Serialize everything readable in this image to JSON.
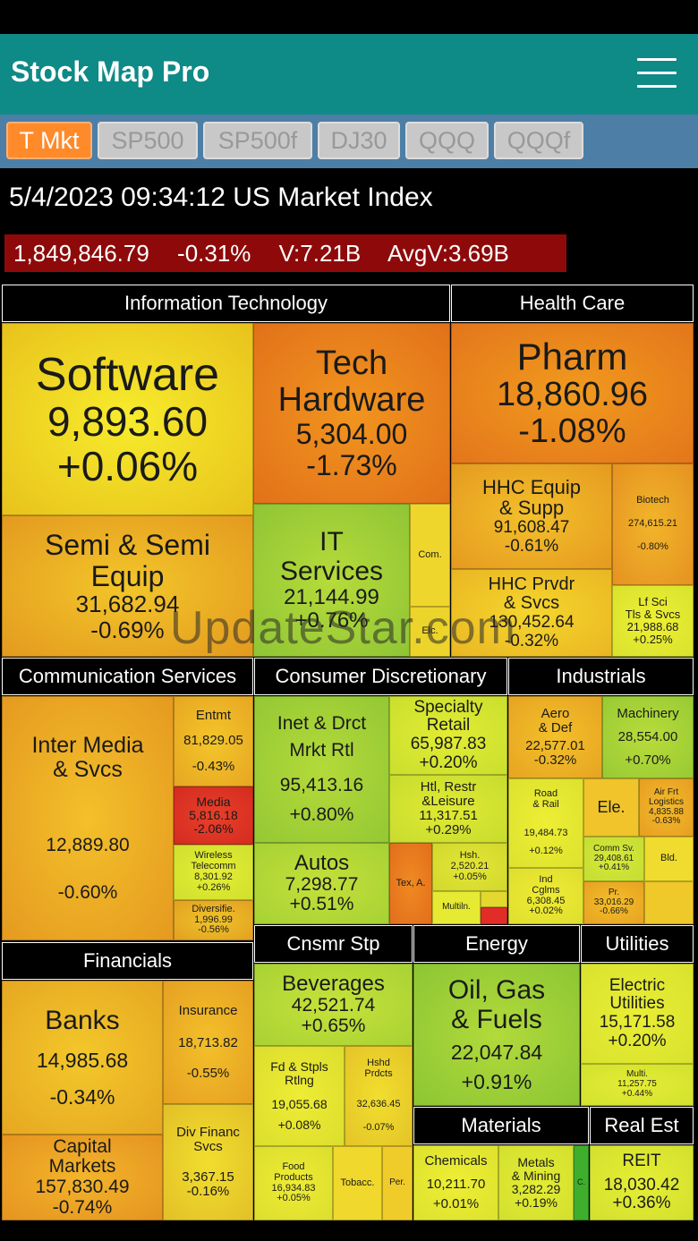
{
  "app": {
    "title": "Stock Map Pro"
  },
  "tabs": [
    "T Mkt",
    "SP500",
    "SP500f",
    "DJ30",
    "QQQ",
    "QQQf"
  ],
  "index": {
    "title": "5/4/2023 09:34:12 US Market Index",
    "value": "1,849,846.79",
    "change": "-0.31%",
    "volume": "V:7.21B",
    "avg_volume": "AvgV:3.69B"
  },
  "sectors": {
    "it": "Information Technology",
    "hc": "Health Care",
    "comm": "Communication Services",
    "cd": "Consumer Discretionary",
    "ind": "Industrials",
    "fin": "Financials",
    "cs": "Cnsmr Stp",
    "en": "Energy",
    "ut": "Utilities",
    "mat": "Materials",
    "re": "Real Est"
  },
  "cells": {
    "software": {
      "name": "Software",
      "value": "9,893.60",
      "change": "+0.06%"
    },
    "tech_hw": {
      "name1": "Tech",
      "name2": "Hardware",
      "value": "5,304.00",
      "change": "-1.73%"
    },
    "semi": {
      "name1": "Semi & Semi",
      "name2": "Equip",
      "value": "31,682.94",
      "change": "-0.69%"
    },
    "it_svcs": {
      "name1": "IT",
      "name2": "Services",
      "value": "21,144.99",
      "change": "+0.76%"
    },
    "com": {
      "name": "Com."
    },
    "elc": {
      "name": "Elc."
    },
    "pharm": {
      "name": "Pharm",
      "value": "18,860.96",
      "change": "-1.08%"
    },
    "hhc_equip": {
      "name1": "HHC Equip",
      "name2": "& Supp",
      "value": "91,608.47",
      "change": "-0.61%"
    },
    "biotech": {
      "name": "Biotech",
      "value": "274,615.21",
      "change": "-0.80%"
    },
    "hhc_prvdr": {
      "name1": "HHC Prvdr",
      "name2": "& Svcs",
      "value": "130,452.64",
      "change": "-0.32%"
    },
    "lf_sci": {
      "name1": "Lf Sci",
      "name2": "Tls & Svcs",
      "value": "21,988.68",
      "change": "+0.25%"
    },
    "inter_media": {
      "name1": "Inter Media",
      "name2": "& Svcs",
      "value": "12,889.80",
      "change": "-0.60%"
    },
    "entmt": {
      "name": "Entmt",
      "value": "81,829.05",
      "change": "-0.43%"
    },
    "media": {
      "name": "Media",
      "value": "5,816.18",
      "change": "-2.06%"
    },
    "wireless": {
      "name1": "Wireless",
      "name2": "Telecomm",
      "value": "8,301.92",
      "change": "+0.26%"
    },
    "diversifie": {
      "name": "Diversifie.",
      "value": "1,996.99",
      "change": "-0.56%"
    },
    "inet": {
      "name1": "Inet & Drct",
      "name2": "Mrkt Rtl",
      "value": "95,413.16",
      "change": "+0.80%"
    },
    "spec_retail": {
      "name1": "Specialty",
      "name2": "Retail",
      "value": "65,987.83",
      "change": "+0.20%"
    },
    "htl": {
      "name1": "Htl, Restr",
      "name2": "&Leisure",
      "value": "11,317.51",
      "change": "+0.29%"
    },
    "autos": {
      "name": "Autos",
      "value": "7,298.77",
      "change": "+0.51%"
    },
    "tex": {
      "name": "Tex, A."
    },
    "hsh": {
      "name": "Hsh.",
      "value": "2,520.21",
      "change": "+0.05%"
    },
    "multiln": {
      "name": "Multiln."
    },
    "aero": {
      "name1": "Aero",
      "name2": "& Def",
      "value": "22,577.01",
      "change": "-0.32%"
    },
    "machinery": {
      "name": "Machinery",
      "value": "28,554.00",
      "change": "+0.70%"
    },
    "road": {
      "name1": "Road",
      "name2": "& Rail",
      "value": "19,484.73",
      "change": "+0.12%"
    },
    "ele": {
      "name": "Ele."
    },
    "air_frt": {
      "name1": "Air Frt",
      "name2": "Logistics",
      "value": "4,835.88",
      "change": "-0.63%"
    },
    "comm_sv": {
      "name": "Comm Sv.",
      "value": "29,408.61",
      "change": "+0.41%"
    },
    "bld": {
      "name": "Bld."
    },
    "ind_cglms": {
      "name1": "Ind",
      "name2": "Cglms",
      "value": "6,308.45",
      "change": "+0.02%"
    },
    "pr": {
      "name": "Pr.",
      "value": "33,016.29",
      "change": "-0.66%"
    },
    "banks": {
      "name": "Banks",
      "value": "14,985.68",
      "change": "-0.34%"
    },
    "insurance": {
      "name": "Insurance",
      "value": "18,713.82",
      "change": "-0.55%"
    },
    "div_fin": {
      "name1": "Div Financ",
      "name2": "Svcs",
      "value": "3,367.15",
      "change": "-0.16%"
    },
    "cap_mkts": {
      "name1": "Capital",
      "name2": "Markets",
      "value": "157,830.49",
      "change": "-0.74%"
    },
    "beverages": {
      "name": "Beverages",
      "value": "42,521.74",
      "change": "+0.65%"
    },
    "fd_stpls": {
      "name1": "Fd & Stpls",
      "name2": "Rtlng",
      "value": "19,055.68",
      "change": "+0.08%"
    },
    "hshd": {
      "name1": "Hshd",
      "name2": "Prdcts",
      "value": "32,636.45",
      "change": "-0.07%"
    },
    "food": {
      "name1": "Food",
      "name2": "Products",
      "value": "16,934.83",
      "change": "+0.05%"
    },
    "tobacc": {
      "name": "Tobacc."
    },
    "per": {
      "name": "Per."
    },
    "oil_gas": {
      "name1": "Oil, Gas",
      "name2": "& Fuels",
      "value": "22,047.84",
      "change": "+0.91%"
    },
    "elec_util": {
      "name1": "Electric",
      "name2": "Utilities",
      "value": "15,171.58",
      "change": "+0.20%"
    },
    "multi": {
      "name": "Multi.",
      "value": "11,257.75",
      "change": "+0.44%"
    },
    "chemicals": {
      "name": "Chemicals",
      "value": "10,211.70",
      "change": "+0.01%"
    },
    "metals": {
      "name1": "Metals",
      "name2": "& Mining",
      "value": "3,282.29",
      "change": "+0.19%"
    },
    "c": {
      "name": "C."
    },
    "reit": {
      "name": "REIT",
      "value": "18,030.42",
      "change": "+0.36%"
    }
  },
  "watermark": "UpdateStar.com"
}
